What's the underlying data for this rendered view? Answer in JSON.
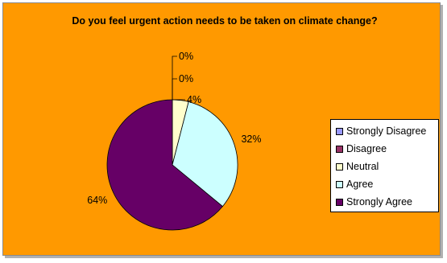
{
  "chart_data": {
    "type": "pie",
    "title": "Do you feel urgent action needs to be taken on climate change?",
    "categories": [
      "Strongly Disagree",
      "Disagree",
      "Neutral",
      "Agree",
      "Strongly Agree"
    ],
    "values": [
      0,
      0,
      4,
      32,
      64
    ],
    "labels": [
      "0%",
      "0%",
      "4%",
      "32%",
      "64%"
    ],
    "colors": [
      "#9999ff",
      "#993366",
      "#ffffcc",
      "#ccffff",
      "#660066"
    ],
    "legend_position": "right",
    "background_color": "#ff9900"
  }
}
